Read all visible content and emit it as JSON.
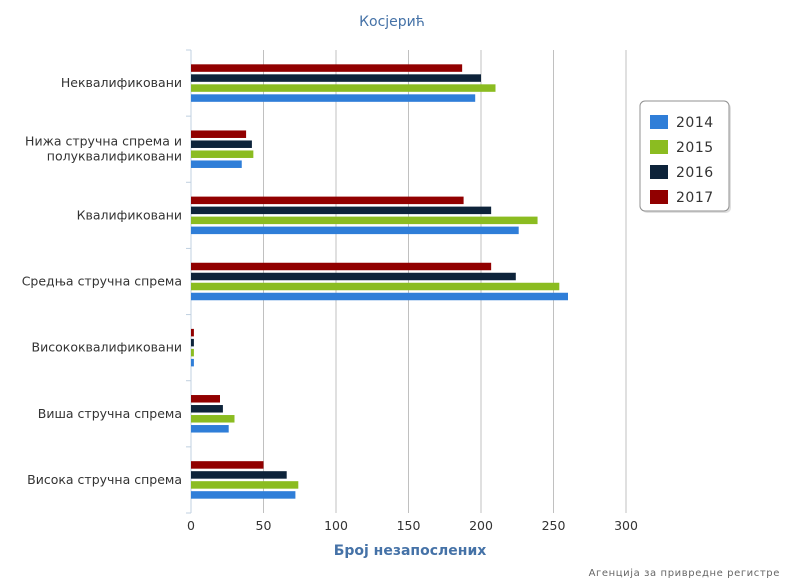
{
  "chart_data": {
    "type": "bar",
    "orientation": "horizontal",
    "title": "Косјерић",
    "xlabel": "Број незапослених",
    "ylabel": "",
    "xlim": [
      0,
      300
    ],
    "xticks": [
      0,
      50,
      100,
      150,
      200,
      250,
      300
    ],
    "grid": true,
    "legend_position": "right",
    "credit": "Агенција за привредне регистре",
    "categories": [
      "Неквалификовани",
      "Нижа стручна спрема и полуквалификовани",
      "Квалификовани",
      "Средња стручна спрема",
      "Висококвалификовани",
      "Виша стручна спрема",
      "Висока стручна спрема"
    ],
    "category_lines": [
      [
        "Неквалификовани"
      ],
      [
        "Нижа стручна спрема и",
        "полуквалификовани"
      ],
      [
        "Квалификовани"
      ],
      [
        "Средња стручна спрема"
      ],
      [
        "Висококвалификовани"
      ],
      [
        "Виша стручна спрема"
      ],
      [
        "Висока стручна спрема"
      ]
    ],
    "series": [
      {
        "name": "2014",
        "color": "#2F7ED8",
        "values": [
          196,
          35,
          226,
          260,
          2,
          26,
          72
        ]
      },
      {
        "name": "2015",
        "color": "#8BBC21",
        "values": [
          210,
          43,
          239,
          254,
          2,
          30,
          74
        ]
      },
      {
        "name": "2016",
        "color": "#0D233A",
        "values": [
          200,
          42,
          207,
          224,
          2,
          22,
          66
        ]
      },
      {
        "name": "2017",
        "color": "#910000",
        "values": [
          187,
          38,
          188,
          207,
          2,
          20,
          50
        ]
      }
    ]
  }
}
